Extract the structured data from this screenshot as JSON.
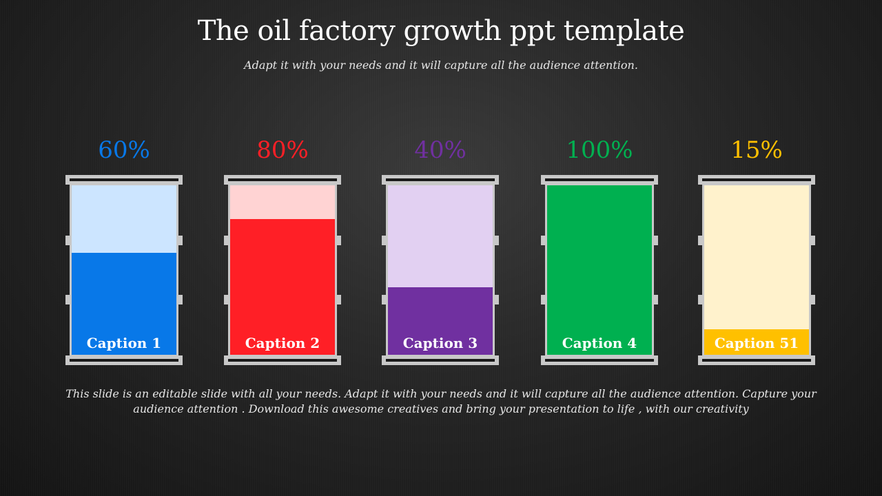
{
  "title": "The oil factory growth ppt template",
  "subtitle": "Adapt it with your needs and it will capture all the audience attention.",
  "description": "This slide is an editable slide with all your needs. Adapt it with your needs and it will capture all the audience attention. Capture your audience attention . Download this awesome creatives and bring your presentation to life , with our creativity",
  "chart_data": {
    "type": "bar",
    "categories": [
      "Caption 1",
      "Caption 2",
      "Caption 3",
      "Caption 4",
      "Caption 51"
    ],
    "values": [
      60,
      80,
      40,
      100,
      15
    ],
    "value_labels": [
      "60%",
      "80%",
      "40%",
      "100%",
      "15%"
    ],
    "ylim": [
      0,
      100
    ],
    "colors": [
      "#0878e8",
      "#ff1f26",
      "#7030a0",
      "#00b050",
      "#ffc000"
    ],
    "light_colors": [
      "#cce5ff",
      "#ffd3d3",
      "#e2d0f2",
      "#00b050",
      "#fff2cc"
    ],
    "rim_color": "#c8c8c8"
  }
}
